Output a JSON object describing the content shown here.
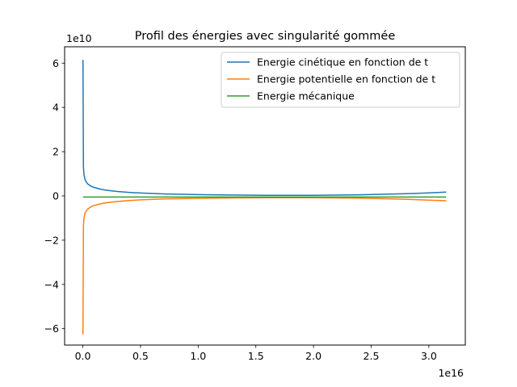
{
  "chart_data": {
    "type": "line",
    "title": "Profil des énergies avec singularité gommée",
    "xlabel": "",
    "ylabel": "",
    "x_offset_label": "1e16",
    "y_offset_label": "1e10",
    "x_scale": 1e+16,
    "y_scale": 10000000000.0,
    "xlim": [
      -0.158,
      3.316
    ],
    "ylim": [
      -6.74,
      6.74
    ],
    "x_ticks": [
      0,
      0.5,
      1.0,
      1.5,
      2.0,
      2.5,
      3.0
    ],
    "x_tick_labels": [
      "0.0",
      "0.5",
      "1.0",
      "1.5",
      "2.0",
      "2.5",
      "3.0"
    ],
    "y_ticks": [
      -6,
      -4,
      -2,
      0,
      2,
      4,
      6
    ],
    "y_tick_labels": [
      "−6",
      "−4",
      "−2",
      "0",
      "2",
      "4",
      "6"
    ],
    "grid": false,
    "legend_position": "top-right",
    "series": [
      {
        "name": "Energie cinétique en fonction de t",
        "color": "#1f77b4",
        "x": [
          0.001,
          0.005,
          0.01,
          0.02,
          0.04,
          0.07,
          0.1,
          0.15,
          0.2,
          0.3,
          0.4,
          0.5,
          0.7,
          1.0,
          1.3,
          1.6,
          2.0,
          2.4,
          2.8,
          3.0,
          3.15
        ],
        "y": [
          6.15,
          1.3,
          0.95,
          0.72,
          0.55,
          0.44,
          0.38,
          0.31,
          0.26,
          0.2,
          0.16,
          0.13,
          0.09,
          0.06,
          0.04,
          0.03,
          0.03,
          0.05,
          0.1,
          0.14,
          0.17
        ]
      },
      {
        "name": "Energie potentielle en fonction de t",
        "color": "#ff7f0e",
        "x": [
          0.001,
          0.005,
          0.01,
          0.02,
          0.04,
          0.07,
          0.1,
          0.15,
          0.2,
          0.3,
          0.4,
          0.5,
          0.7,
          1.0,
          1.3,
          1.6,
          2.0,
          2.4,
          2.8,
          3.0,
          3.15
        ],
        "y": [
          -6.25,
          -1.35,
          -1.0,
          -0.77,
          -0.6,
          -0.49,
          -0.43,
          -0.36,
          -0.31,
          -0.25,
          -0.21,
          -0.18,
          -0.14,
          -0.11,
          -0.09,
          -0.08,
          -0.08,
          -0.1,
          -0.15,
          -0.19,
          -0.22
        ]
      },
      {
        "name": "Energie mécanique",
        "color": "#2ca02c",
        "x": [
          0.001,
          3.15
        ],
        "y": [
          -0.05,
          -0.05
        ]
      }
    ]
  }
}
